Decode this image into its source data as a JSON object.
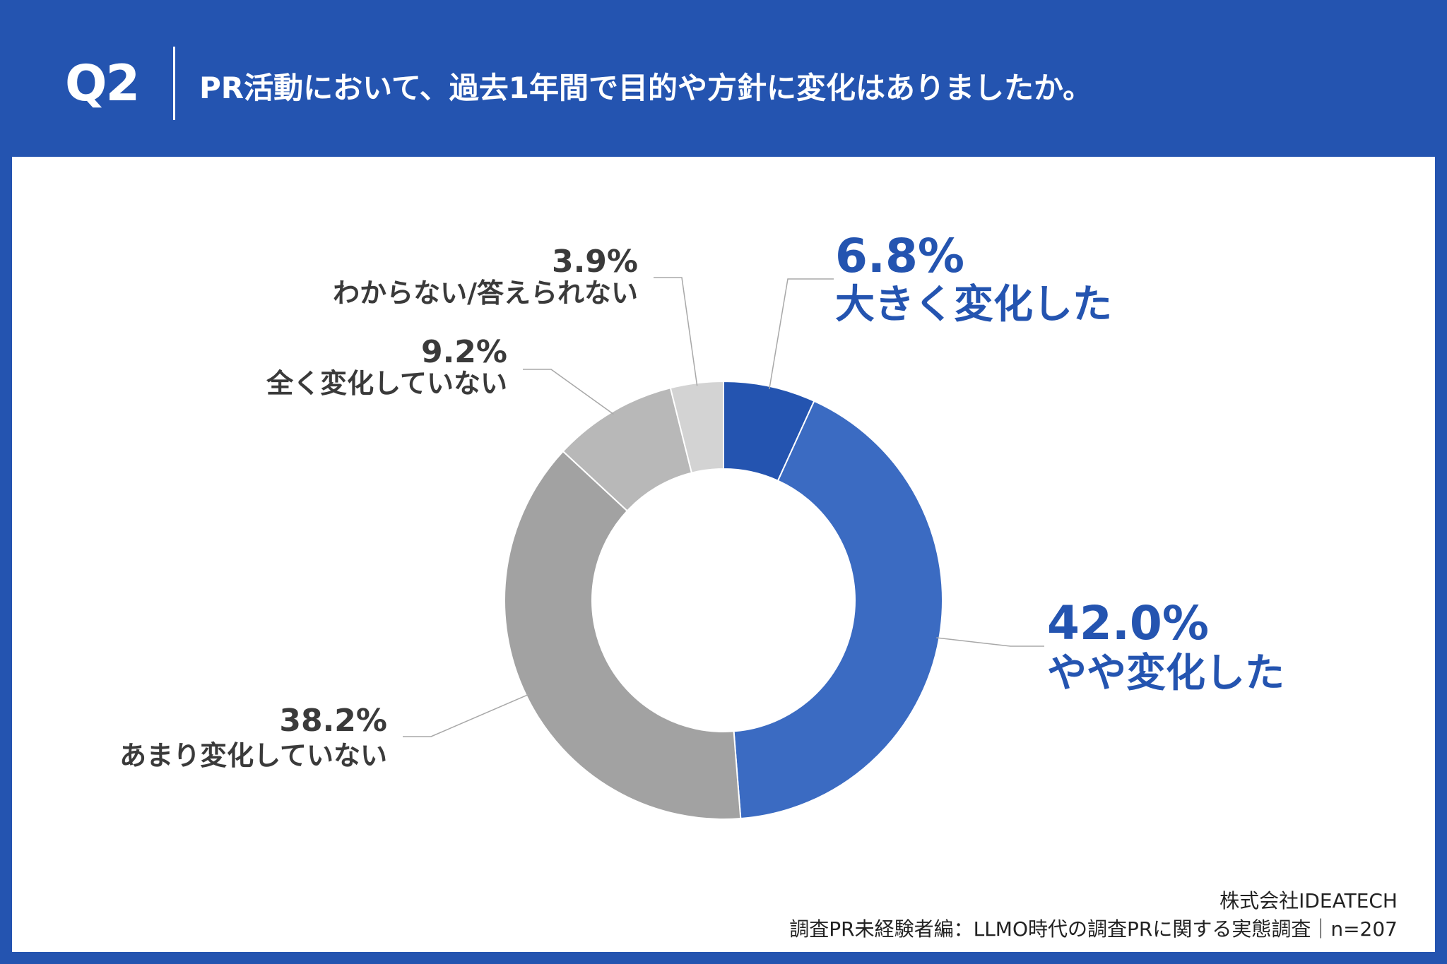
{
  "header": {
    "q_label": "Q2",
    "question": "PR活動において、過去1年間で目的や方針に変化はありましたか。"
  },
  "chart_data": {
    "type": "pie",
    "donut": true,
    "slices": [
      {
        "label": "大きく変化した",
        "value": 6.8,
        "value_text": "6.8%",
        "color": "#2454b0"
      },
      {
        "label": "やや変化した",
        "value": 42.0,
        "value_text": "42.0%",
        "color": "#3b6bc2"
      },
      {
        "label": "あまり変化していない",
        "value": 38.2,
        "value_text": "38.2%",
        "color": "#a2a2a2"
      },
      {
        "label": "全く変化していない",
        "value": 9.2,
        "value_text": "9.2%",
        "color": "#b8b8b8"
      },
      {
        "label": "わからない/答えられない",
        "value": 3.9,
        "value_text": "3.9%",
        "color": "#d3d3d3"
      }
    ]
  },
  "source": {
    "company": "株式会社IDEATECH",
    "survey": "調査PR未経験者編：LLMO時代の調査PRに関する実態調査｜n=207"
  }
}
